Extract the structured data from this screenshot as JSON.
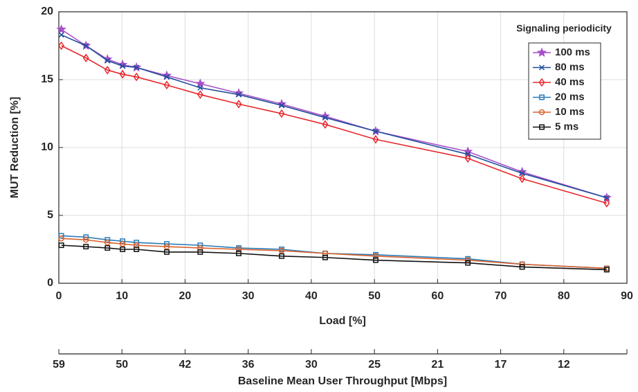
{
  "chart_data": {
    "type": "line",
    "xlabel": "Load [%]",
    "ylabel": "MUT Reduction [%]",
    "x": [
      0.4,
      4.3,
      7.7,
      10.1,
      12.3,
      17.1,
      22.4,
      28.5,
      35.3,
      42.2,
      50.2,
      64.8,
      73.4,
      86.8
    ],
    "xlim": [
      0,
      90
    ],
    "xticks": [
      0,
      10,
      20,
      30,
      40,
      50,
      60,
      70,
      80,
      90
    ],
    "ylim": [
      0,
      20
    ],
    "yticks": [
      0,
      5,
      10,
      15,
      20
    ],
    "grid": true,
    "x2label": "Baseline Mean User Throughput [Mbps]",
    "x2lim": [
      0,
      90
    ],
    "x2ticks": [
      {
        "value": 0,
        "label": "59"
      },
      {
        "value": 10,
        "label": "50"
      },
      {
        "value": 20,
        "label": "42"
      },
      {
        "value": 30,
        "label": "36"
      },
      {
        "value": 40,
        "label": "30"
      },
      {
        "value": 50,
        "label": "25"
      },
      {
        "value": 60,
        "label": "21"
      },
      {
        "value": 70,
        "label": "17"
      },
      {
        "value": 80,
        "label": "12"
      }
    ],
    "legend_title": "Signaling periodicity",
    "legend_position": "upper right",
    "series": [
      {
        "name": "100 ms",
        "color": "#a64fc9",
        "marker": "star",
        "values": [
          18.7,
          17.5,
          16.5,
          16.1,
          15.9,
          15.3,
          14.7,
          14.0,
          13.2,
          12.3,
          11.2,
          9.7,
          8.2,
          6.3
        ]
      },
      {
        "name": "80 ms",
        "color": "#1f4e9c",
        "marker": "x",
        "values": [
          18.3,
          17.5,
          16.4,
          16.0,
          15.9,
          15.2,
          14.4,
          13.9,
          13.1,
          12.2,
          11.2,
          9.5,
          8.1,
          6.3
        ]
      },
      {
        "name": "40 ms",
        "color": "#e8262a",
        "marker": "diamond",
        "values": [
          17.5,
          16.6,
          15.7,
          15.4,
          15.2,
          14.6,
          13.9,
          13.2,
          12.5,
          11.7,
          10.6,
          9.2,
          7.7,
          5.9
        ]
      },
      {
        "name": "20 ms",
        "color": "#2a7ab8",
        "marker": "square",
        "values": [
          3.5,
          3.4,
          3.2,
          3.1,
          3.0,
          2.9,
          2.8,
          2.6,
          2.5,
          2.2,
          2.1,
          1.8,
          1.4,
          1.1
        ]
      },
      {
        "name": "10 ms",
        "color": "#d9622b",
        "marker": "circle",
        "values": [
          3.3,
          3.2,
          3.0,
          2.9,
          2.8,
          2.7,
          2.6,
          2.5,
          2.4,
          2.2,
          2.0,
          1.7,
          1.4,
          1.1
        ]
      },
      {
        "name": "5 ms",
        "color": "#111111",
        "marker": "square",
        "values": [
          2.8,
          2.7,
          2.6,
          2.5,
          2.5,
          2.3,
          2.3,
          2.2,
          2.0,
          1.9,
          1.7,
          1.5,
          1.2,
          1.0
        ]
      }
    ]
  }
}
